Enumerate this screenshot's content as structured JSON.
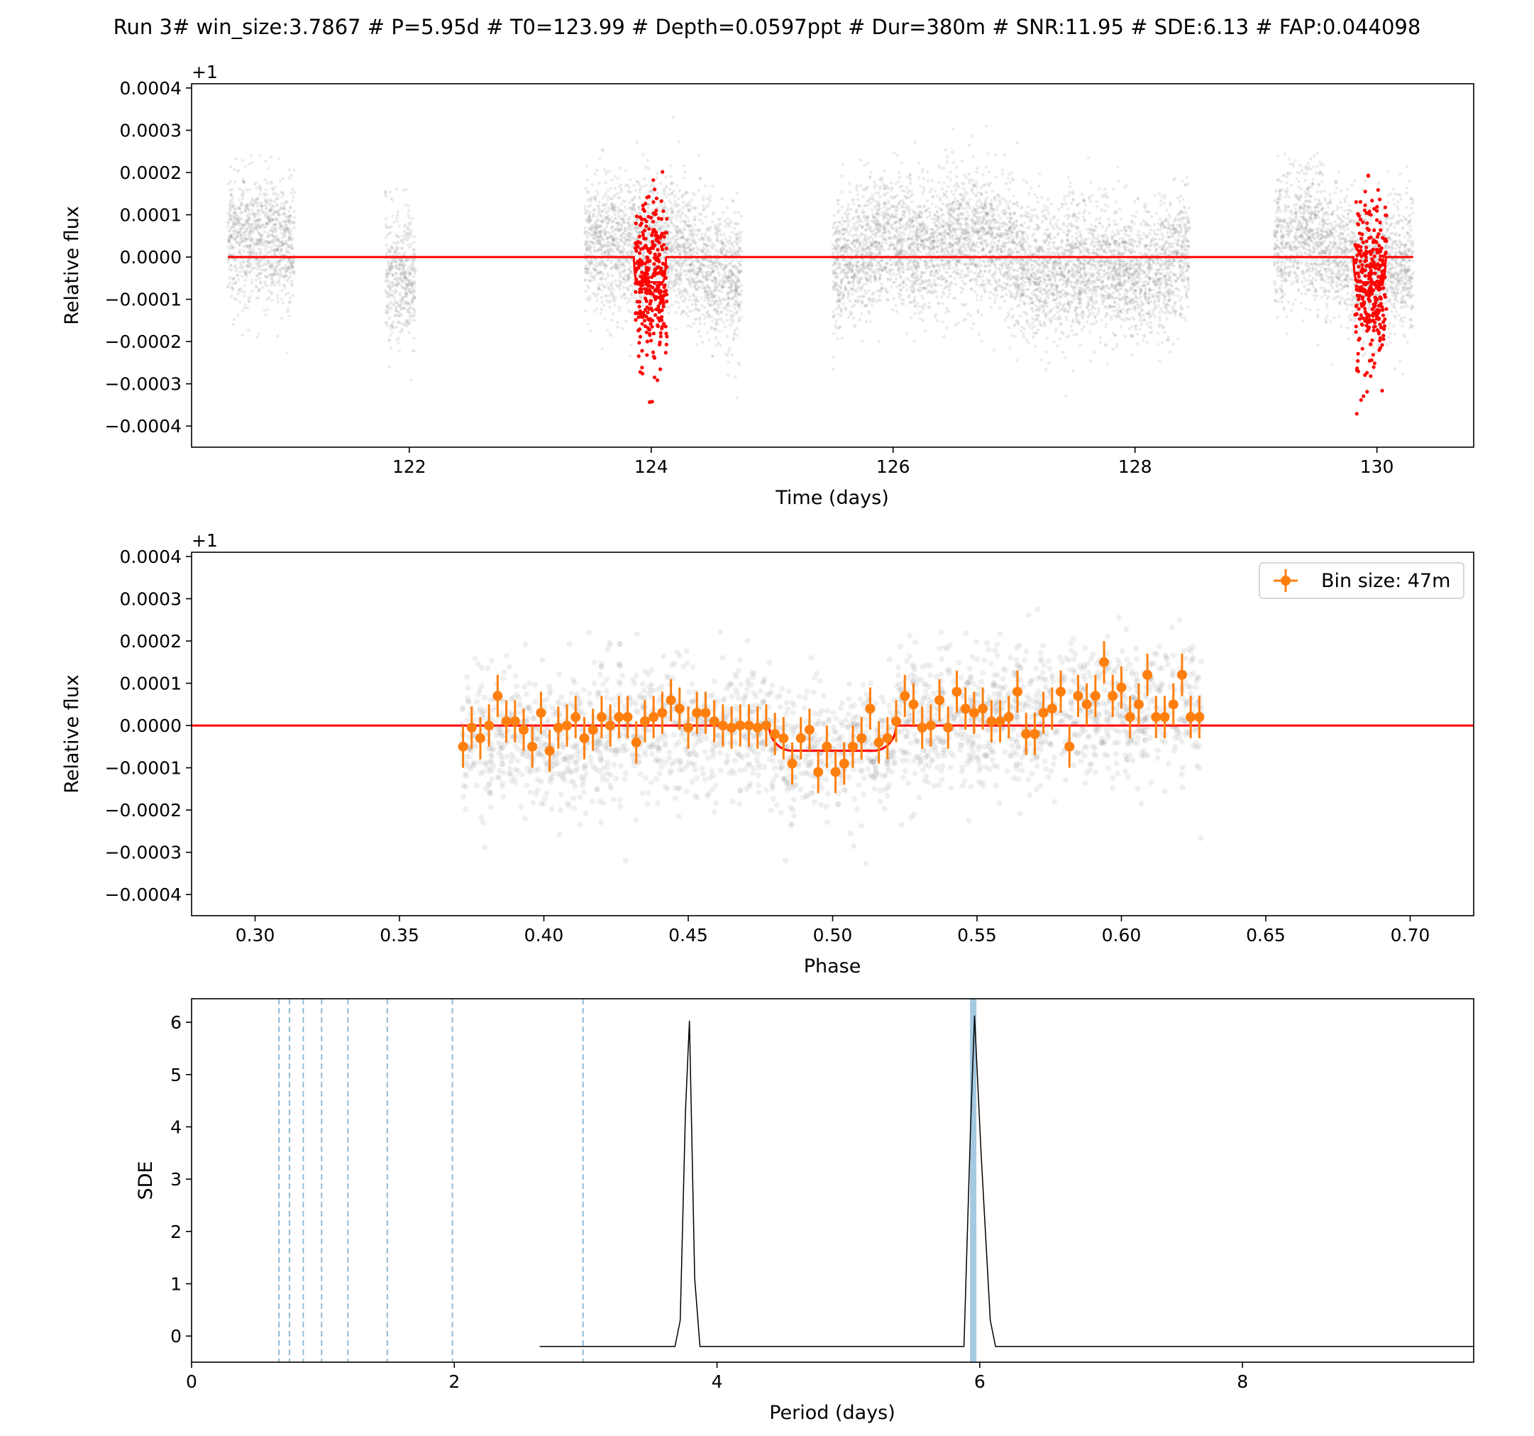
{
  "figure": {
    "title": "Run 3# win_size:3.7867 # P=5.95d # T0=123.99 # Depth=0.0597ppt # Dur=380m # SNR:11.95 # SDE:6.13 # FAP:0.044098"
  },
  "colors": {
    "raw_points": "#808080",
    "in_transit_points": "#ff0000",
    "model_line": "#ff0000",
    "binned_points": "#ff7f0e",
    "sde_line": "#000000",
    "period_marker": "#1f77b4"
  },
  "chart_data": [
    {
      "type": "scatter",
      "panel": "light-curve",
      "xlabel": "Time (days)",
      "ylabel": "Relative flux",
      "y_offset_label": "+1",
      "xlim": [
        120.2,
        130.8
      ],
      "ylim": [
        -0.00045,
        0.00041
      ],
      "xticks": [
        122,
        124,
        126,
        128,
        130
      ],
      "yticks": [
        -0.0004,
        -0.0003,
        -0.0002,
        -0.0001,
        0.0,
        0.0001,
        0.0002,
        0.0003,
        0.0004
      ],
      "ytick_labels": [
        "−0.0004",
        "−0.0003",
        "−0.0002",
        "−0.0001",
        "0.0000",
        "0.0001",
        "0.0002",
        "0.0003",
        "0.0004"
      ],
      "data_segments": [
        [
          120.5,
          121.05
        ],
        [
          121.8,
          122.05
        ],
        [
          123.45,
          124.75
        ],
        [
          125.5,
          128.45
        ],
        [
          129.15,
          130.3
        ]
      ],
      "transits": [
        {
          "t0": 123.99,
          "x_start": 123.87,
          "x_end": 124.13,
          "y_min": -0.00036,
          "y_max": 0.00023
        },
        {
          "t0": 129.94,
          "x_start": 129.82,
          "x_end": 130.08,
          "y_min": -0.00041,
          "y_max": 0.00025
        }
      ],
      "model": {
        "x_range": [
          120.5,
          130.3
        ],
        "baseline": 0.0,
        "depth": -5.97e-05,
        "transit_centers": [
          123.99,
          129.94
        ],
        "half_duration": 0.132,
        "ingress": 0.03
      },
      "series": [
        {
          "name": "",
          "style": "faint grey points"
        },
        {
          "name": "",
          "style": "red in-transit points"
        },
        {
          "name": "",
          "style": "red model line"
        }
      ]
    },
    {
      "type": "scatter",
      "panel": "phase-folded",
      "xlabel": "Phase",
      "ylabel": "Relative flux",
      "y_offset_label": "+1",
      "xlim": [
        0.278,
        0.722
      ],
      "ylim": [
        -0.00045,
        0.00041
      ],
      "xticks": [
        0.3,
        0.35,
        0.4,
        0.45,
        0.5,
        0.55,
        0.6,
        0.65,
        0.7
      ],
      "xtick_labels": [
        "0.30",
        "0.35",
        "0.40",
        "0.45",
        "0.50",
        "0.55",
        "0.60",
        "0.65",
        "0.70"
      ],
      "yticks": [
        -0.0004,
        -0.0003,
        -0.0002,
        -0.0001,
        0.0,
        0.0001,
        0.0002,
        0.0003,
        0.0004
      ],
      "ytick_labels": [
        "−0.0004",
        "−0.0003",
        "−0.0002",
        "−0.0001",
        "0.0000",
        "0.0001",
        "0.0002",
        "0.0003",
        "0.0004"
      ],
      "raw_phase_range": [
        0.371,
        0.628
      ],
      "legend": {
        "label": "Bin size: 47m",
        "position": "top-right"
      },
      "model": {
        "x_range": [
          0.278,
          0.722
        ],
        "baseline": 0.0,
        "depth": -5.97e-05,
        "transit_start": 0.478,
        "transit_end": 0.522,
        "ingress": 0.008
      },
      "binned": {
        "x": [
          0.372,
          0.375,
          0.378,
          0.381,
          0.384,
          0.387,
          0.39,
          0.393,
          0.396,
          0.399,
          0.402,
          0.405,
          0.408,
          0.411,
          0.414,
          0.417,
          0.42,
          0.423,
          0.426,
          0.429,
          0.432,
          0.435,
          0.438,
          0.441,
          0.444,
          0.447,
          0.45,
          0.453,
          0.456,
          0.459,
          0.462,
          0.465,
          0.468,
          0.471,
          0.474,
          0.477,
          0.48,
          0.483,
          0.486,
          0.489,
          0.492,
          0.495,
          0.498,
          0.501,
          0.504,
          0.507,
          0.51,
          0.513,
          0.516,
          0.519,
          0.522,
          0.525,
          0.528,
          0.531,
          0.534,
          0.537,
          0.54,
          0.543,
          0.546,
          0.549,
          0.552,
          0.555,
          0.558,
          0.561,
          0.564,
          0.567,
          0.57,
          0.573,
          0.576,
          0.579,
          0.582,
          0.585,
          0.588,
          0.591,
          0.594,
          0.597,
          0.6,
          0.603,
          0.606,
          0.609,
          0.612,
          0.615,
          0.618,
          0.621,
          0.624,
          0.627
        ],
        "y": [
          -5e-05,
          -5e-06,
          -3e-05,
          0.0,
          7e-05,
          1e-05,
          1e-05,
          -1e-05,
          -5e-05,
          3e-05,
          -6e-05,
          -5e-06,
          0.0,
          2e-05,
          -3e-05,
          -1e-05,
          2e-05,
          0.0,
          2e-05,
          2e-05,
          -4e-05,
          1e-05,
          2e-05,
          3e-05,
          6e-05,
          4e-05,
          -5e-06,
          3e-05,
          3e-05,
          1e-05,
          0.0,
          -5e-06,
          0.0,
          0.0,
          -5e-06,
          0.0,
          -2e-05,
          -3e-05,
          -9e-05,
          -3e-05,
          -1e-05,
          -0.00011,
          -5e-05,
          -0.00011,
          -9e-05,
          -5e-05,
          -3e-05,
          4e-05,
          -4e-05,
          -3e-05,
          1e-05,
          7e-05,
          5e-05,
          -5e-06,
          0.0,
          6e-05,
          -5e-06,
          8e-05,
          4e-05,
          3e-05,
          4e-05,
          1e-05,
          1e-05,
          2e-05,
          8e-05,
          -2e-05,
          -2e-05,
          3e-05,
          4e-05,
          8e-05,
          -5e-05,
          7e-05,
          5e-05,
          7e-05,
          0.00015,
          7e-05,
          9e-05,
          2e-05,
          5e-05,
          0.00012,
          2e-05,
          2e-05,
          5e-05,
          0.00012,
          2e-05,
          2e-05
        ],
        "err": 5e-05
      },
      "series": [
        {
          "name": "",
          "style": "faint grey folded points"
        },
        {
          "name": "Bin size: 47m",
          "style": "orange binned points with error bars"
        },
        {
          "name": "",
          "style": "red model line"
        }
      ]
    },
    {
      "type": "line",
      "panel": "periodogram",
      "xlabel": "Period (days)",
      "ylabel": "SDE",
      "xlim": [
        0.0,
        9.76
      ],
      "ylim": [
        -0.5,
        6.45
      ],
      "xticks": [
        0,
        2,
        4,
        6,
        8
      ],
      "yticks": [
        0,
        1,
        2,
        3,
        4,
        5,
        6
      ],
      "x": [
        2.65,
        3.68,
        3.72,
        3.76,
        3.79,
        3.83,
        3.87,
        5.88,
        5.93,
        5.96,
        6.01,
        6.08,
        6.12,
        9.76
      ],
      "y": [
        -0.2,
        -0.2,
        0.3,
        4.3,
        6.03,
        1.1,
        -0.2,
        -0.2,
        4.0,
        6.13,
        3.5,
        0.3,
        -0.2,
        -0.2
      ],
      "best_period": 5.95,
      "harmonic_lines": [
        0.665,
        0.745,
        0.85,
        0.99,
        1.19,
        1.49,
        1.985,
        2.98
      ]
    }
  ]
}
